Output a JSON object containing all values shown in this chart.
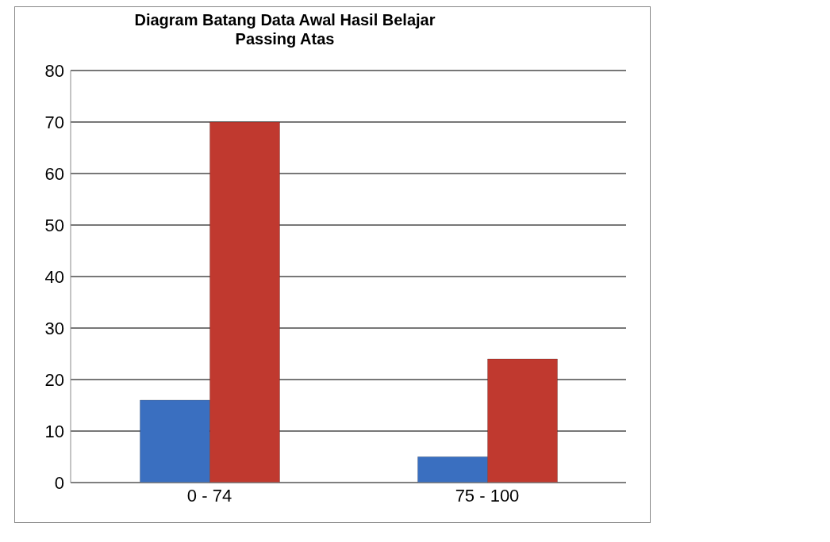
{
  "chart_data": {
    "type": "bar",
    "title": "Diagram Batang Data Awal Hasil Belajar\nPassing Atas",
    "categories": [
      "0 - 74",
      "75 - 100"
    ],
    "series": [
      {
        "color": "#3a6fc0",
        "values": [
          16,
          5
        ]
      },
      {
        "color": "#c0392f",
        "values": [
          70,
          24
        ]
      }
    ],
    "ylim": [
      0,
      80
    ],
    "yticks": [
      0,
      10,
      20,
      30,
      40,
      50,
      60,
      70,
      80
    ],
    "grid": "y",
    "legend": false
  }
}
